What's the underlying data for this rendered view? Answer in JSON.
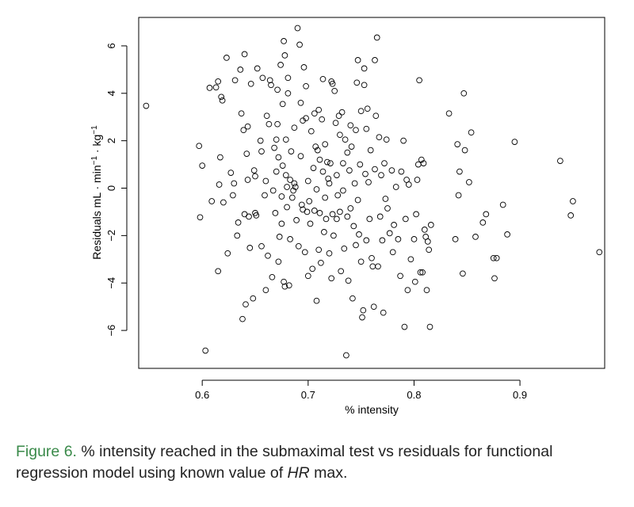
{
  "chart_data": {
    "type": "scatter",
    "title": "",
    "xlabel": "% intensity",
    "ylabel_parts": [
      "Residuals mL",
      " · ",
      "min",
      "−1",
      " · ",
      "kg",
      "−1"
    ],
    "xlim": [
      0.54,
      0.98
    ],
    "ylim": [
      -7.6,
      7.2
    ],
    "x_ticks": [
      0.6,
      0.7,
      0.8,
      0.9
    ],
    "x_tick_labels": [
      "0.6",
      "0.7",
      "0.8",
      "0.9"
    ],
    "y_ticks": [
      -6,
      -4,
      -2,
      0,
      2,
      4,
      6
    ],
    "y_tick_labels": [
      "−6",
      "−4",
      "−2",
      "0",
      "2",
      "4",
      "6"
    ],
    "marker": "open-circle",
    "marker_color": "#000000",
    "grid": false,
    "legend": "none",
    "points": [
      [
        0.547,
        3.47
      ],
      [
        0.597,
        1.78
      ],
      [
        0.598,
        -1.23
      ],
      [
        0.6,
        0.95
      ],
      [
        0.603,
        -6.85
      ],
      [
        0.607,
        4.23
      ],
      [
        0.609,
        -0.55
      ],
      [
        0.613,
        4.25
      ],
      [
        0.615,
        4.5
      ],
      [
        0.615,
        -3.5
      ],
      [
        0.616,
        0.15
      ],
      [
        0.617,
        1.3
      ],
      [
        0.618,
        3.85
      ],
      [
        0.619,
        3.7
      ],
      [
        0.62,
        -0.6
      ],
      [
        0.623,
        5.5
      ],
      [
        0.624,
        -2.75
      ],
      [
        0.627,
        0.65
      ],
      [
        0.629,
        -0.3
      ],
      [
        0.63,
        0.2
      ],
      [
        0.631,
        4.55
      ],
      [
        0.633,
        -2.0
      ],
      [
        0.634,
        -1.45
      ],
      [
        0.636,
        5.0
      ],
      [
        0.637,
        3.15
      ],
      [
        0.638,
        -5.52
      ],
      [
        0.639,
        2.45
      ],
      [
        0.64,
        5.65
      ],
      [
        0.64,
        -1.1
      ],
      [
        0.641,
        -4.9
      ],
      [
        0.642,
        1.45
      ],
      [
        0.643,
        0.35
      ],
      [
        0.643,
        2.6
      ],
      [
        0.644,
        -1.2
      ],
      [
        0.645,
        -2.52
      ],
      [
        0.646,
        4.4
      ],
      [
        0.648,
        -4.65
      ],
      [
        0.649,
        0.75
      ],
      [
        0.65,
        -1.05
      ],
      [
        0.65,
        0.5
      ],
      [
        0.651,
        -1.15
      ],
      [
        0.652,
        5.05
      ],
      [
        0.655,
        2.0
      ],
      [
        0.656,
        1.55
      ],
      [
        0.656,
        -2.45
      ],
      [
        0.657,
        4.65
      ],
      [
        0.659,
        -0.3
      ],
      [
        0.66,
        -4.3
      ],
      [
        0.66,
        0.3
      ],
      [
        0.661,
        3.05
      ],
      [
        0.662,
        -2.85
      ],
      [
        0.663,
        2.7
      ],
      [
        0.664,
        4.55
      ],
      [
        0.665,
        4.35
      ],
      [
        0.666,
        -3.75
      ],
      [
        0.667,
        -0.1
      ],
      [
        0.668,
        1.7
      ],
      [
        0.669,
        -1.05
      ],
      [
        0.67,
        2.05
      ],
      [
        0.67,
        0.7
      ],
      [
        0.671,
        2.7
      ],
      [
        0.671,
        4.15
      ],
      [
        0.672,
        -3.1
      ],
      [
        0.672,
        1.3
      ],
      [
        0.673,
        -2.05
      ],
      [
        0.674,
        5.2
      ],
      [
        0.675,
        -0.35
      ],
      [
        0.675,
        -1.5
      ],
      [
        0.676,
        3.55
      ],
      [
        0.676,
        0.95
      ],
      [
        0.677,
        -3.95
      ],
      [
        0.677,
        6.2
      ],
      [
        0.678,
        -4.15
      ],
      [
        0.678,
        5.6
      ],
      [
        0.679,
        2.05
      ],
      [
        0.679,
        0.55
      ],
      [
        0.68,
        0.05
      ],
      [
        0.68,
        -0.8
      ],
      [
        0.681,
        4.0
      ],
      [
        0.681,
        4.65
      ],
      [
        0.682,
        -4.1
      ],
      [
        0.683,
        0.35
      ],
      [
        0.683,
        -2.15
      ],
      [
        0.684,
        1.55
      ],
      [
        0.685,
        -0.4
      ],
      [
        0.686,
        -0.1
      ],
      [
        0.687,
        2.55
      ],
      [
        0.687,
        0.2
      ],
      [
        0.688,
        0.05
      ],
      [
        0.689,
        -1.35
      ],
      [
        0.69,
        6.75
      ],
      [
        0.691,
        -2.45
      ],
      [
        0.692,
        6.05
      ],
      [
        0.693,
        1.35
      ],
      [
        0.693,
        3.6
      ],
      [
        0.694,
        -0.7
      ],
      [
        0.695,
        -0.9
      ],
      [
        0.695,
        2.85
      ],
      [
        0.696,
        5.1
      ],
      [
        0.697,
        -2.7
      ],
      [
        0.698,
        2.95
      ],
      [
        0.698,
        4.3
      ],
      [
        0.699,
        -1.0
      ],
      [
        0.7,
        -3.7
      ],
      [
        0.7,
        0.3
      ],
      [
        0.701,
        -0.55
      ],
      [
        0.702,
        -1.5
      ],
      [
        0.703,
        2.4
      ],
      [
        0.704,
        -3.4
      ],
      [
        0.705,
        0.85
      ],
      [
        0.706,
        3.15
      ],
      [
        0.706,
        -0.95
      ],
      [
        0.707,
        1.75
      ],
      [
        0.708,
        -4.75
      ],
      [
        0.708,
        -0.05
      ],
      [
        0.709,
        1.6
      ],
      [
        0.71,
        -2.6
      ],
      [
        0.71,
        3.3
      ],
      [
        0.711,
        1.2
      ],
      [
        0.711,
        -1.05
      ],
      [
        0.712,
        -3.15
      ],
      [
        0.713,
        2.9
      ],
      [
        0.714,
        4.6
      ],
      [
        0.714,
        0.7
      ],
      [
        0.715,
        -1.85
      ],
      [
        0.716,
        1.85
      ],
      [
        0.716,
        -0.4
      ],
      [
        0.717,
        -1.3
      ],
      [
        0.718,
        1.1
      ],
      [
        0.719,
        0.4
      ],
      [
        0.72,
        -2.75
      ],
      [
        0.72,
        0.2
      ],
      [
        0.721,
        1.05
      ],
      [
        0.722,
        -3.8
      ],
      [
        0.722,
        4.5
      ],
      [
        0.723,
        4.4
      ],
      [
        0.723,
        -1.1
      ],
      [
        0.724,
        -2.0
      ],
      [
        0.725,
        4.1
      ],
      [
        0.726,
        2.75
      ],
      [
        0.727,
        0.55
      ],
      [
        0.727,
        -1.3
      ],
      [
        0.728,
        -0.3
      ],
      [
        0.729,
        3.05
      ],
      [
        0.73,
        -1.0
      ],
      [
        0.73,
        2.25
      ],
      [
        0.731,
        -3.5
      ],
      [
        0.732,
        3.2
      ],
      [
        0.733,
        1.05
      ],
      [
        0.733,
        -0.1
      ],
      [
        0.734,
        -2.55
      ],
      [
        0.735,
        2.05
      ],
      [
        0.736,
        -7.05
      ],
      [
        0.737,
        1.5
      ],
      [
        0.737,
        -1.2
      ],
      [
        0.738,
        -3.9
      ],
      [
        0.739,
        0.75
      ],
      [
        0.74,
        2.65
      ],
      [
        0.74,
        -0.85
      ],
      [
        0.741,
        1.75
      ],
      [
        0.742,
        -4.65
      ],
      [
        0.743,
        -1.6
      ],
      [
        0.744,
        0.2
      ],
      [
        0.745,
        2.45
      ],
      [
        0.745,
        -2.4
      ],
      [
        0.746,
        4.45
      ],
      [
        0.747,
        5.4
      ],
      [
        0.747,
        -0.5
      ],
      [
        0.748,
        -1.95
      ],
      [
        0.749,
        1.0
      ],
      [
        0.75,
        3.25
      ],
      [
        0.75,
        -3.1
      ],
      [
        0.751,
        -5.45
      ],
      [
        0.752,
        -5.15
      ],
      [
        0.753,
        4.35
      ],
      [
        0.753,
        5.05
      ],
      [
        0.754,
        0.6
      ],
      [
        0.755,
        2.5
      ],
      [
        0.755,
        -2.2
      ],
      [
        0.756,
        3.35
      ],
      [
        0.757,
        0.25
      ],
      [
        0.758,
        -1.3
      ],
      [
        0.759,
        1.6
      ],
      [
        0.76,
        -2.95
      ],
      [
        0.761,
        -3.3
      ],
      [
        0.762,
        -5.0
      ],
      [
        0.763,
        5.4
      ],
      [
        0.763,
        0.8
      ],
      [
        0.764,
        3.05
      ],
      [
        0.765,
        6.35
      ],
      [
        0.766,
        -3.3
      ],
      [
        0.767,
        2.15
      ],
      [
        0.768,
        -1.2
      ],
      [
        0.769,
        0.55
      ],
      [
        0.77,
        -2.2
      ],
      [
        0.771,
        -5.25
      ],
      [
        0.772,
        1.05
      ],
      [
        0.773,
        -0.45
      ],
      [
        0.774,
        2.05
      ],
      [
        0.775,
        -0.85
      ],
      [
        0.777,
        -1.9
      ],
      [
        0.779,
        0.75
      ],
      [
        0.78,
        -2.7
      ],
      [
        0.781,
        -1.55
      ],
      [
        0.783,
        0.05
      ],
      [
        0.785,
        -2.15
      ],
      [
        0.787,
        -3.7
      ],
      [
        0.788,
        0.7
      ],
      [
        0.79,
        2.0
      ],
      [
        0.791,
        -5.85
      ],
      [
        0.792,
        -1.3
      ],
      [
        0.793,
        0.35
      ],
      [
        0.794,
        -4.3
      ],
      [
        0.795,
        0.15
      ],
      [
        0.797,
        -3.0
      ],
      [
        0.8,
        -2.15
      ],
      [
        0.801,
        -3.95
      ],
      [
        0.802,
        -1.1
      ],
      [
        0.803,
        0.35
      ],
      [
        0.804,
        1.0
      ],
      [
        0.805,
        4.55
      ],
      [
        0.806,
        -3.55
      ],
      [
        0.807,
        1.2
      ],
      [
        0.808,
        -3.55
      ],
      [
        0.809,
        1.05
      ],
      [
        0.81,
        -1.75
      ],
      [
        0.811,
        -2.05
      ],
      [
        0.812,
        -4.3
      ],
      [
        0.813,
        -2.25
      ],
      [
        0.814,
        -2.6
      ],
      [
        0.815,
        -5.85
      ],
      [
        0.816,
        -1.55
      ],
      [
        0.833,
        3.15
      ],
      [
        0.839,
        -2.15
      ],
      [
        0.841,
        1.85
      ],
      [
        0.842,
        -0.3
      ],
      [
        0.843,
        0.7
      ],
      [
        0.846,
        -3.6
      ],
      [
        0.847,
        4.0
      ],
      [
        0.848,
        1.6
      ],
      [
        0.852,
        0.25
      ],
      [
        0.854,
        2.35
      ],
      [
        0.858,
        -2.05
      ],
      [
        0.865,
        -1.45
      ],
      [
        0.868,
        -1.1
      ],
      [
        0.875,
        -2.95
      ],
      [
        0.876,
        -3.8
      ],
      [
        0.878,
        -2.95
      ],
      [
        0.884,
        -0.7
      ],
      [
        0.888,
        -1.95
      ],
      [
        0.895,
        1.95
      ],
      [
        0.938,
        1.15
      ],
      [
        0.948,
        -1.15
      ],
      [
        0.95,
        -0.55
      ],
      [
        0.975,
        -2.7
      ]
    ]
  },
  "caption": {
    "figure_label": "Figure 6.",
    "text_before_italic": " % intensity reached in the submaximal test vs residuals for functional regression model using known value of ",
    "italic": "HR",
    "text_after_italic": " max."
  }
}
